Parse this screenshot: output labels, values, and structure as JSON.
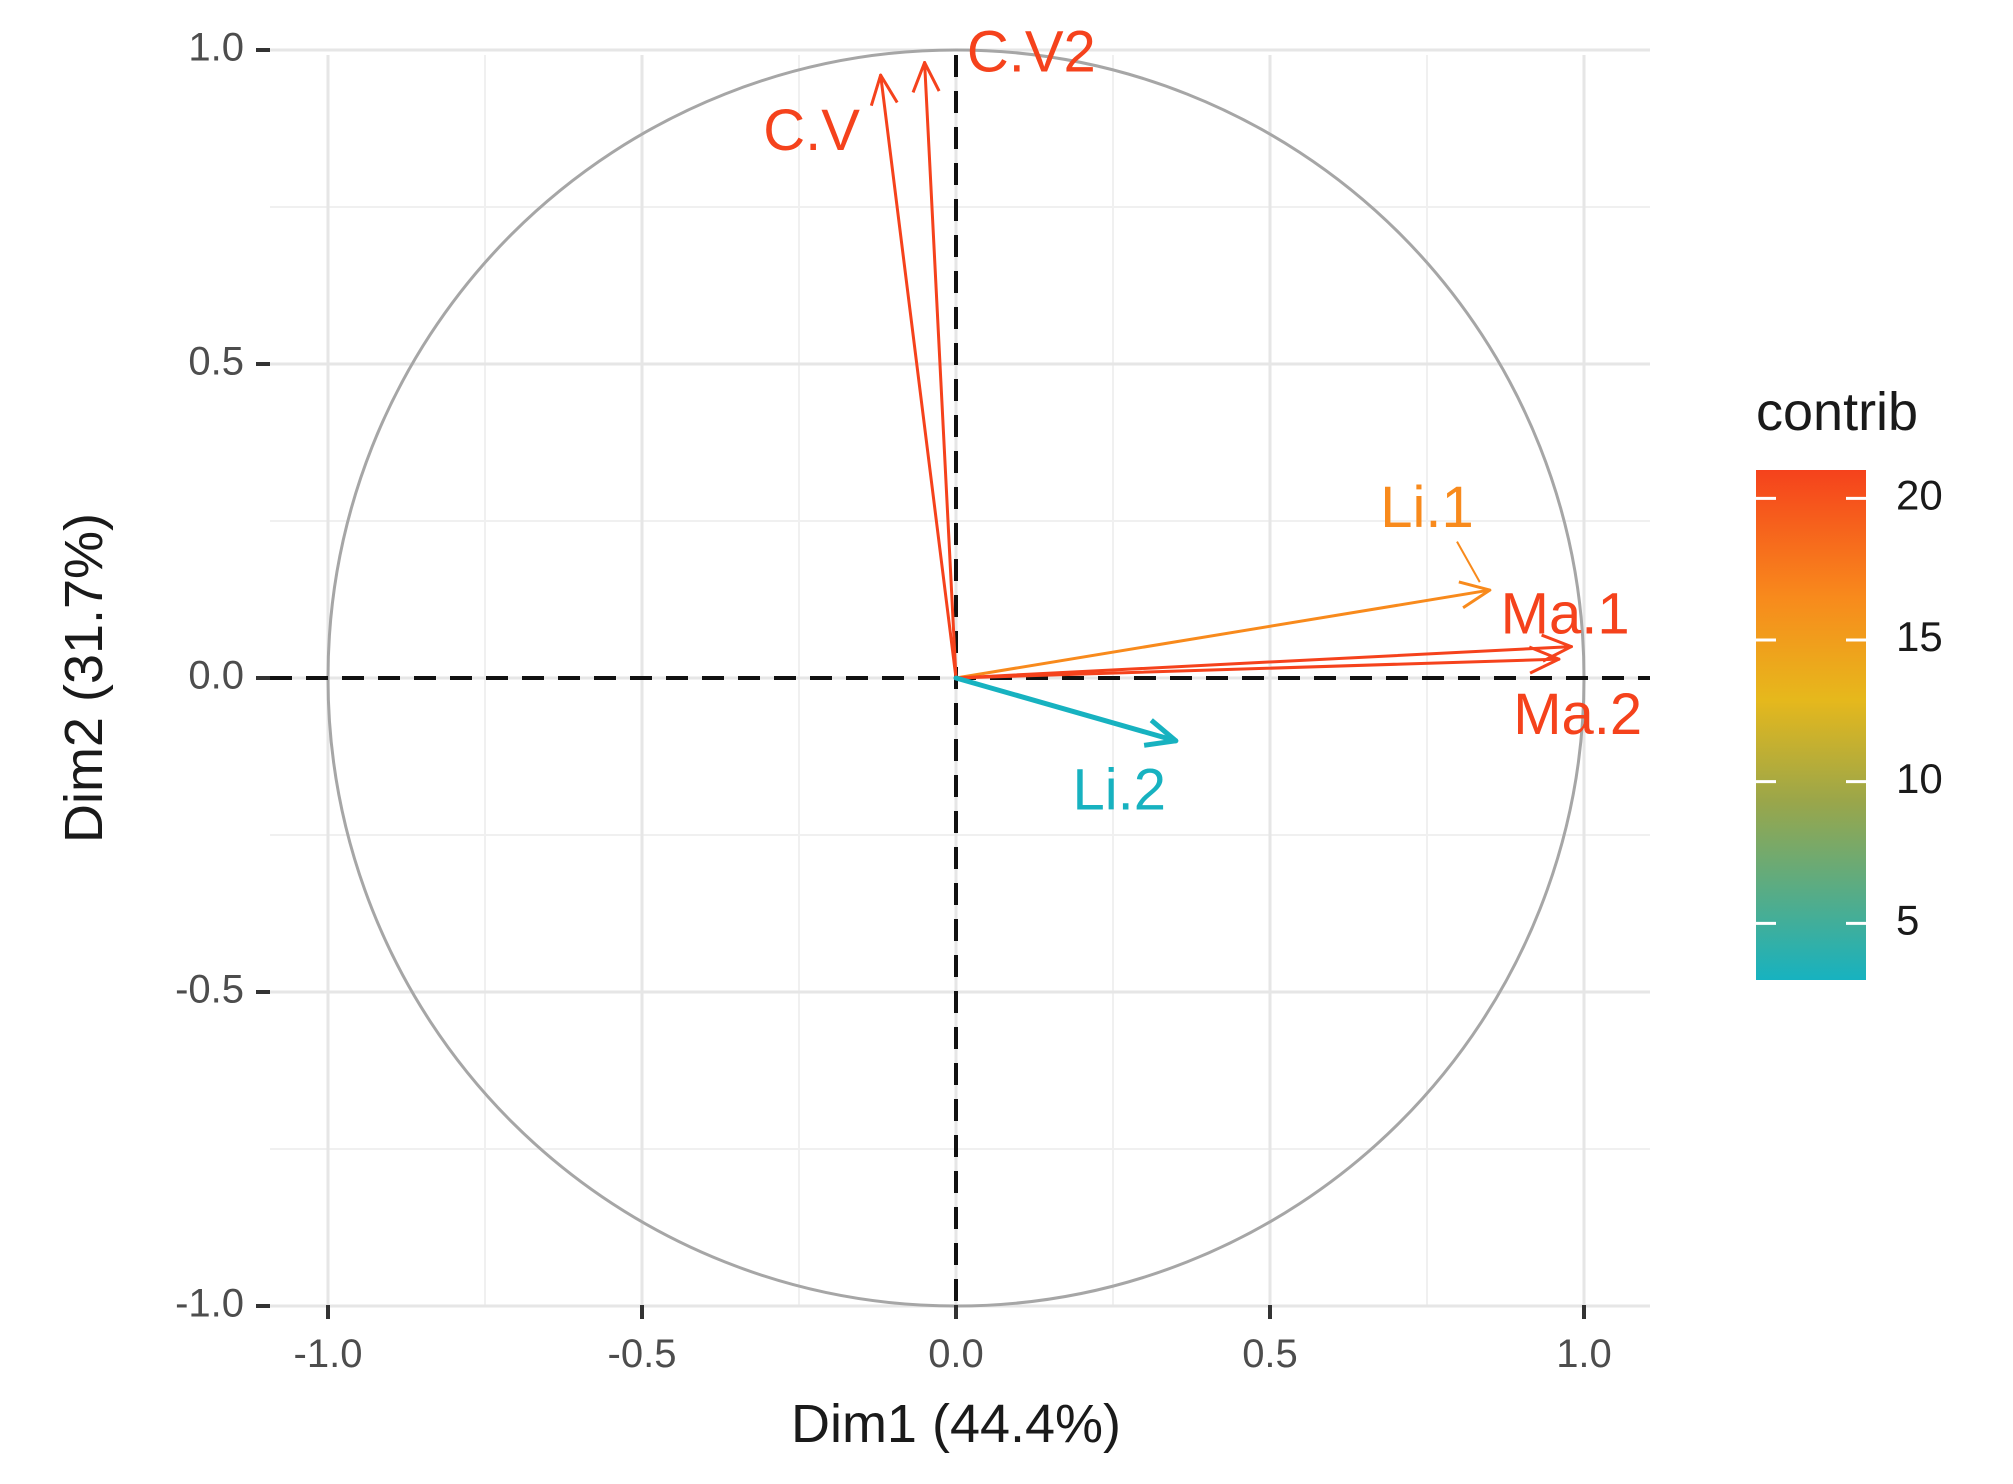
{
  "chart_data": {
    "type": "scatter",
    "subtype": "pca-variable-correlation-circle",
    "title": "",
    "xlabel": "Dim1 (44.4%)",
    "ylabel": "Dim2 (31.7%)",
    "xlim": [
      -1.1,
      1.1
    ],
    "ylim": [
      -1.1,
      1.1
    ],
    "x_ticks": [
      -1.0,
      -0.5,
      0.0,
      0.5,
      1.0
    ],
    "y_ticks": [
      -1.0,
      -0.5,
      0.0,
      0.5,
      1.0
    ],
    "x_tick_labels": [
      "-1.0",
      "-0.5",
      "0.0",
      "0.5",
      "1.0"
    ],
    "y_tick_labels": [
      "-1.0",
      "-0.5",
      "0.0",
      "0.5",
      "1.0"
    ],
    "grid": true,
    "unit_circle": true,
    "variables": [
      {
        "name": "C.V1",
        "label": "C.V",
        "x": -0.12,
        "y": 0.96,
        "contrib": 21,
        "color": "#f5421c",
        "label_x": -0.23,
        "label_y": 0.865
      },
      {
        "name": "C.V2",
        "label": "C.V2",
        "x": -0.05,
        "y": 0.98,
        "contrib": 21,
        "color": "#f5421c",
        "label_x": 0.12,
        "label_y": 0.99
      },
      {
        "name": "Li.1",
        "label": "Li.1",
        "x": 0.85,
        "y": 0.14,
        "contrib": 17,
        "color": "#f88a1c",
        "label_x": 0.75,
        "label_y": 0.265
      },
      {
        "name": "Ma.1",
        "label": "Ma.1",
        "x": 0.98,
        "y": 0.05,
        "contrib": 21,
        "color": "#f5421c",
        "label_x": 0.97,
        "label_y": 0.095
      },
      {
        "name": "Ma.2",
        "label": "Ma.2",
        "x": 0.96,
        "y": 0.03,
        "contrib": 21,
        "color": "#f5421c",
        "label_x": 0.99,
        "label_y": -0.065
      },
      {
        "name": "Li.2",
        "label": "Li.2",
        "x": 0.35,
        "y": -0.1,
        "contrib": 3,
        "color": "#17b2c0",
        "label_x": 0.26,
        "label_y": -0.185
      }
    ],
    "legend": {
      "title": "contrib",
      "position": "right",
      "range": [
        3,
        21
      ],
      "ticks": [
        5,
        10,
        15,
        20
      ],
      "tick_labels": [
        "5",
        "10",
        "15",
        "20"
      ],
      "gradient": [
        "#17b2c0",
        "#e6b81c",
        "#f88a1c",
        "#f5421c"
      ]
    }
  }
}
